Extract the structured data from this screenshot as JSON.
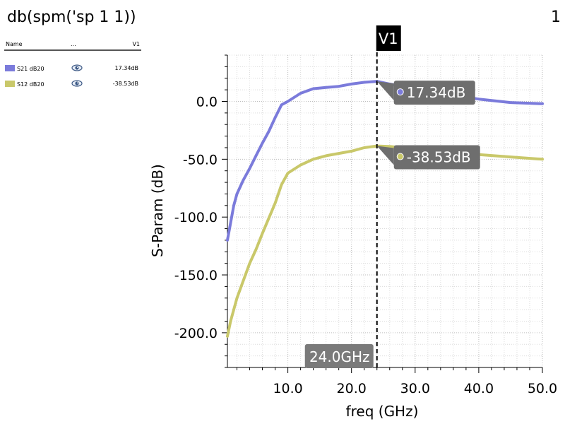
{
  "page": {
    "title": "db(spm('sp 1 1))",
    "page_number": "1"
  },
  "legend": {
    "columns": {
      "name": "Name",
      "dots": "...",
      "value": "V1"
    },
    "items": [
      {
        "label": "S21 dB20",
        "value": "17.34dB",
        "color": "#7b7bdb",
        "icon": "eye-icon"
      },
      {
        "label": "S12 dB20",
        "value": "-38.53dB",
        "color": "#c9c86a",
        "icon": "eye-icon"
      }
    ]
  },
  "marker": {
    "name": "V1",
    "x": 24.0,
    "x_label": "24.0GHz",
    "readouts": [
      {
        "series": "S21 dB20",
        "y": 17.34,
        "label": "17.34dB"
      },
      {
        "series": "S12 dB20",
        "y": -38.53,
        "label": "-38.53dB"
      }
    ]
  },
  "chart_data": {
    "type": "line",
    "title": "db(spm('sp 1 1))",
    "xlabel": "freq (GHz)",
    "ylabel": "S-Param (dB)",
    "xlim": [
      0.5,
      50.0
    ],
    "ylim": [
      -230.0,
      40.0
    ],
    "x_ticks": [
      10.0,
      20.0,
      30.0,
      40.0,
      50.0
    ],
    "x_tick_labels": [
      "10.0",
      "20.0",
      "30.0",
      "40.0",
      "50.0"
    ],
    "y_ticks": [
      0.0,
      -50.0,
      -100.0,
      -150.0,
      -200.0
    ],
    "y_tick_labels": [
      "0.0",
      "-50.0",
      "-100.0",
      "-150.0",
      "-200.0"
    ],
    "grid": true,
    "series": [
      {
        "name": "S21 dB20",
        "color": "#7b7bdb",
        "x": [
          0.5,
          1.0,
          1.5,
          2.0,
          3.0,
          4.0,
          5.0,
          6.0,
          7.0,
          8.0,
          9.0,
          10.0,
          12.0,
          14.0,
          16.0,
          18.0,
          20.0,
          22.0,
          24.0,
          26.0,
          28.0,
          30.0,
          35.0,
          40.0,
          45.0,
          50.0
        ],
        "y": [
          -120,
          -105,
          -90,
          -80,
          -68,
          -58,
          -47,
          -36,
          -26,
          -14,
          -3,
          0,
          7,
          11,
          12,
          13,
          15,
          16.5,
          17.34,
          15,
          13,
          11,
          6,
          2,
          -1,
          -2
        ]
      },
      {
        "name": "S12 dB20",
        "color": "#c9c86a",
        "x": [
          0.5,
          1.0,
          2.0,
          3.0,
          4.0,
          5.0,
          6.0,
          7.0,
          8.0,
          9.0,
          10.0,
          12.0,
          14.0,
          16.0,
          18.0,
          20.0,
          22.0,
          24.0,
          26.0,
          28.0,
          30.0,
          35.0,
          40.0,
          45.0,
          50.0
        ],
        "y": [
          -203,
          -190,
          -170,
          -155,
          -140,
          -128,
          -114,
          -101,
          -88,
          -72,
          -62,
          -55,
          -50,
          -47,
          -45,
          -43,
          -40,
          -38.53,
          -39,
          -40,
          -41,
          -44,
          -46,
          -48,
          -50
        ]
      }
    ]
  }
}
